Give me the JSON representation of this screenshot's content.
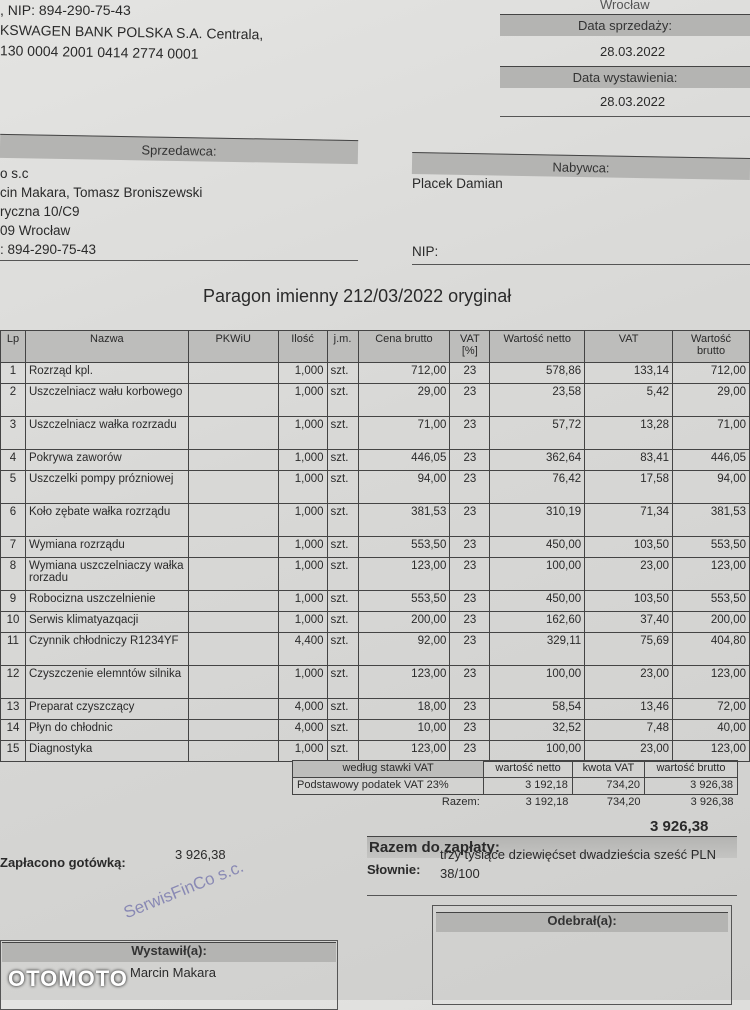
{
  "header": {
    "nip_line": ", NIP: 894-290-75-43",
    "bank_line": "KSWAGEN BANK POLSKA S.A. Centrala,",
    "account_line": "130 0004 2001 0414 2774 0001",
    "city": "Wrocław",
    "sale_date_label": "Data sprzedaży:",
    "sale_date": "28.03.2022",
    "issue_date_label": "Data wystawienia:",
    "issue_date": "28.03.2022"
  },
  "seller": {
    "label": "Sprzedawca:",
    "lines": [
      "o s.c",
      "cin Makara, Tomasz Broniszewski",
      "ryczna 10/C9",
      "09 Wrocław",
      ": 894-290-75-43"
    ]
  },
  "buyer": {
    "label": "Nabywca:",
    "name": "Placek Damian",
    "nip_label": "NIP:"
  },
  "title": "Paragon imienny  212/03/2022 oryginał",
  "table": {
    "headers": [
      "Lp",
      "Nazwa",
      "PKWiU",
      "Ilość",
      "j.m.",
      "Cena brutto",
      "VAT [%]",
      "Wartość netto",
      "VAT",
      "Wartość brutto"
    ],
    "rows": [
      [
        "1",
        "Rozrząd kpl.",
        "",
        "1,000",
        "szt.",
        "712,00",
        "23",
        "578,86",
        "133,14",
        "712,00"
      ],
      [
        "2",
        "Uszczelniacz wału korbowego",
        "",
        "1,000",
        "szt.",
        "29,00",
        "23",
        "23,58",
        "5,42",
        "29,00"
      ],
      [
        "3",
        "Uszczelniacz wałka rozrzadu",
        "",
        "1,000",
        "szt.",
        "71,00",
        "23",
        "57,72",
        "13,28",
        "71,00"
      ],
      [
        "4",
        "Pokrywa zaworów",
        "",
        "1,000",
        "szt.",
        "446,05",
        "23",
        "362,64",
        "83,41",
        "446,05"
      ],
      [
        "5",
        "Uszczelki pompy prózniowej",
        "",
        "1,000",
        "szt.",
        "94,00",
        "23",
        "76,42",
        "17,58",
        "94,00"
      ],
      [
        "6",
        "Koło zębate wałka rozrządu",
        "",
        "1,000",
        "szt.",
        "381,53",
        "23",
        "310,19",
        "71,34",
        "381,53"
      ],
      [
        "7",
        "Wymiana rozrządu",
        "",
        "1,000",
        "szt.",
        "553,50",
        "23",
        "450,00",
        "103,50",
        "553,50"
      ],
      [
        "8",
        "Wymiana uszczelniaczy wałka rorzadu",
        "",
        "1,000",
        "szt.",
        "123,00",
        "23",
        "100,00",
        "23,00",
        "123,00"
      ],
      [
        "9",
        "Robocizna uszczelnienie",
        "",
        "1,000",
        "szt.",
        "553,50",
        "23",
        "450,00",
        "103,50",
        "553,50"
      ],
      [
        "10",
        "Serwis klimatyazqacji",
        "",
        "1,000",
        "szt.",
        "200,00",
        "23",
        "162,60",
        "37,40",
        "200,00"
      ],
      [
        "11",
        "Czynnik chłodniczy R1234YF",
        "",
        "4,400",
        "szt.",
        "92,00",
        "23",
        "329,11",
        "75,69",
        "404,80"
      ],
      [
        "12",
        "Czyszczenie elemntów silnika",
        "",
        "1,000",
        "szt.",
        "123,00",
        "23",
        "100,00",
        "23,00",
        "123,00"
      ],
      [
        "13",
        "Preparat czyszczący",
        "",
        "4,000",
        "szt.",
        "18,00",
        "23",
        "58,54",
        "13,46",
        "72,00"
      ],
      [
        "14",
        "Płyn do chłodnic",
        "",
        "4,000",
        "szt.",
        "10,00",
        "23",
        "32,52",
        "7,48",
        "40,00"
      ],
      [
        "15",
        "Diagnostyka",
        "",
        "1,000",
        "szt.",
        "123,00",
        "23",
        "100,00",
        "23,00",
        "123,00"
      ]
    ]
  },
  "summary": {
    "headers": [
      "według stawki VAT",
      "wartość netto",
      "kwota VAT",
      "wartość brutto"
    ],
    "row": [
      "Podstawowy podatek VAT 23%",
      "3 192,18",
      "734,20",
      "3 926,38"
    ],
    "total_label": "Razem:",
    "total": [
      "3 192,18",
      "734,20",
      "3 926,38"
    ]
  },
  "payment": {
    "due_label": "Razem do zapłaty:",
    "due": "3 926,38",
    "words_label": "Słownie:",
    "words": "trzy tysiące dziewięćset dwadzieścia sześć  PLN",
    "words2": "38/100",
    "cash_label": "Zapłacono gotówką:",
    "cash": "3 926,38"
  },
  "signatures": {
    "issued_label": "Wystawił(a):",
    "issued_name": "Marcin Makara",
    "received_label": "Odebrał(a):"
  },
  "stamp": "SerwisFinCo s.c.",
  "watermark": "OTOMOTO"
}
